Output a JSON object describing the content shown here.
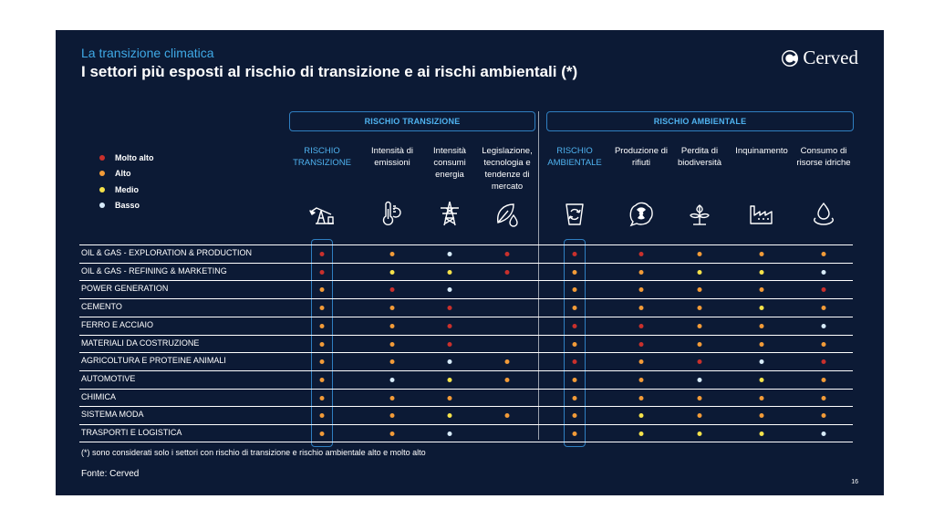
{
  "header": {
    "subtitle": "La transizione climatica",
    "title": "I settori più esposti al rischio di transizione e ai rischi ambientali (*)",
    "logo_text": "Cerved"
  },
  "groups": {
    "transition": "RISCHIO TRANSIZIONE",
    "environmental": "RISCHIO AMBIENTALE"
  },
  "legend": [
    {
      "key": "molto_alto",
      "label": "Molto alto",
      "color": "#c9302c"
    },
    {
      "key": "alto",
      "label": "Alto",
      "color": "#f29b38"
    },
    {
      "key": "medio",
      "label": "Medio",
      "color": "#f5e24a"
    },
    {
      "key": "basso",
      "label": "Basso",
      "color": "#d7ebfa"
    }
  ],
  "colors": {
    "M": "#c9302c",
    "A": "#f29b38",
    "D": "#f5e24a",
    "B": "#d7ebfa",
    "accent": "#4fb3f0",
    "background": "#0c1a35"
  },
  "columns": [
    {
      "label": "RISCHIO TRANSIZIONE",
      "icon": "oil-pump-icon",
      "accent": true
    },
    {
      "label": "Intensità di emissioni",
      "icon": "thermometer-icon",
      "accent": false
    },
    {
      "label": "Intensità consumi energia",
      "icon": "power-pylon-icon",
      "accent": false
    },
    {
      "label": "Legislazione, tecnologia e tendenze di mercato",
      "icon": "leaf-drop-icon",
      "accent": false
    },
    {
      "label": "RISCHIO AMBIENTALE",
      "icon": "recycle-bin-icon",
      "accent": true
    },
    {
      "label": "Produzione di rifiuti",
      "icon": "radioactive-waste-icon",
      "accent": false
    },
    {
      "label": "Perdita di biodiversità",
      "icon": "plant-icon",
      "accent": false
    },
    {
      "label": "Inquinamento",
      "icon": "factory-icon",
      "accent": false
    },
    {
      "label": "Consumo di risorse idriche",
      "icon": "water-drop-icon",
      "accent": false
    }
  ],
  "rows": [
    {
      "label": "OIL & GAS - EXPLORATION & PRODUCTION",
      "levels": [
        "M",
        "A",
        "B",
        "M",
        "M",
        "M",
        "A",
        "A",
        "A"
      ]
    },
    {
      "label": "OIL & GAS - REFINING & MARKETING",
      "levels": [
        "M",
        "D",
        "D",
        "M",
        "A",
        "A",
        "D",
        "D",
        "B"
      ]
    },
    {
      "label": "POWER GENERATION",
      "levels": [
        "A",
        "M",
        "B",
        "",
        "A",
        "A",
        "A",
        "A",
        "M"
      ]
    },
    {
      "label": "CEMENTO",
      "levels": [
        "A",
        "A",
        "M",
        "",
        "A",
        "A",
        "A",
        "D",
        "A"
      ]
    },
    {
      "label": "FERRO E ACCIAIO",
      "levels": [
        "A",
        "A",
        "M",
        "",
        "M",
        "M",
        "A",
        "A",
        "B"
      ]
    },
    {
      "label": "MATERIALI DA COSTRUZIONE",
      "levels": [
        "A",
        "A",
        "M",
        "",
        "A",
        "M",
        "A",
        "A",
        "A"
      ]
    },
    {
      "label": "AGRICOLTURA E PROTEINE ANIMALI",
      "levels": [
        "A",
        "A",
        "B",
        "A",
        "M",
        "A",
        "M",
        "B",
        "M"
      ]
    },
    {
      "label": "AUTOMOTIVE",
      "levels": [
        "A",
        "B",
        "D",
        "A",
        "A",
        "A",
        "B",
        "D",
        "A"
      ]
    },
    {
      "label": "CHIMICA",
      "levels": [
        "A",
        "A",
        "A",
        "",
        "A",
        "A",
        "A",
        "A",
        "A"
      ]
    },
    {
      "label": "SISTEMA MODA",
      "levels": [
        "A",
        "A",
        "D",
        "A",
        "A",
        "D",
        "A",
        "A",
        "A"
      ]
    },
    {
      "label": "TRASPORTI E LOGISTICA",
      "levels": [
        "A",
        "A",
        "B",
        "",
        "A",
        "D",
        "D",
        "D",
        "B"
      ]
    }
  ],
  "footer": {
    "note": "(*) sono considerati solo i settori con rischio di transizione e rischio ambientale alto e molto alto",
    "source": "Fonte: Cerved",
    "page_number": "16"
  }
}
